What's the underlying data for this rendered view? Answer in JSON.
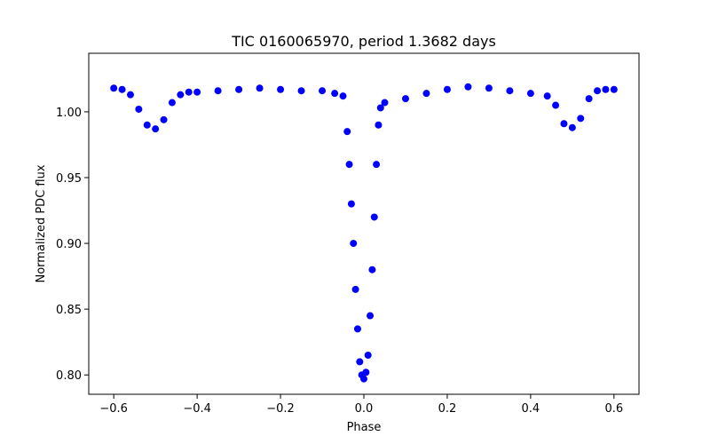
{
  "chart_data": {
    "type": "scatter",
    "title": "TIC 0160065970, period 1.3682 days",
    "xlabel": "Phase",
    "ylabel": "Normalized PDC flux",
    "xlim": [
      -0.66,
      0.66
    ],
    "ylim": [
      0.7853,
      1.0445
    ],
    "xticks": [
      -0.6,
      -0.4,
      -0.2,
      0.0,
      0.2,
      0.4,
      0.6
    ],
    "xtick_labels": [
      "−0.6",
      "−0.4",
      "−0.2",
      "0.0",
      "0.2",
      "0.4",
      "0.6"
    ],
    "yticks": [
      0.8,
      0.85,
      0.9,
      0.95,
      1.0
    ],
    "ytick_labels": [
      "0.80",
      "0.85",
      "0.90",
      "0.95",
      "1.00"
    ],
    "grid": false,
    "marker_color": "#0000ff",
    "series": [
      {
        "points": [
          [
            -0.6,
            1.018
          ],
          [
            -0.58,
            1.017
          ],
          [
            -0.56,
            1.013
          ],
          [
            -0.54,
            1.002
          ],
          [
            -0.52,
            0.99
          ],
          [
            -0.5,
            0.987
          ],
          [
            -0.48,
            0.994
          ],
          [
            -0.46,
            1.007
          ],
          [
            -0.44,
            1.013
          ],
          [
            -0.42,
            1.015
          ],
          [
            -0.4,
            1.015
          ],
          [
            -0.35,
            1.016
          ],
          [
            -0.3,
            1.017
          ],
          [
            -0.25,
            1.018
          ],
          [
            -0.2,
            1.017
          ],
          [
            -0.15,
            1.016
          ],
          [
            -0.1,
            1.016
          ],
          [
            -0.07,
            1.014
          ],
          [
            -0.05,
            1.012
          ],
          [
            -0.04,
            0.985
          ],
          [
            -0.035,
            0.96
          ],
          [
            -0.03,
            0.93
          ],
          [
            -0.025,
            0.9
          ],
          [
            -0.02,
            0.865
          ],
          [
            -0.015,
            0.835
          ],
          [
            -0.01,
            0.81
          ],
          [
            -0.005,
            0.8
          ],
          [
            0.0,
            0.797
          ],
          [
            0.005,
            0.802
          ],
          [
            0.01,
            0.815
          ],
          [
            0.015,
            0.845
          ],
          [
            0.02,
            0.88
          ],
          [
            0.025,
            0.92
          ],
          [
            0.03,
            0.96
          ],
          [
            0.035,
            0.99
          ],
          [
            0.04,
            1.003
          ],
          [
            0.05,
            1.007
          ],
          [
            0.1,
            1.01
          ],
          [
            0.15,
            1.014
          ],
          [
            0.2,
            1.017
          ],
          [
            0.25,
            1.019
          ],
          [
            0.3,
            1.018
          ],
          [
            0.35,
            1.016
          ],
          [
            0.4,
            1.014
          ],
          [
            0.44,
            1.012
          ],
          [
            0.46,
            1.005
          ],
          [
            0.48,
            0.991
          ],
          [
            0.5,
            0.988
          ],
          [
            0.52,
            0.995
          ],
          [
            0.54,
            1.01
          ],
          [
            0.56,
            1.016
          ],
          [
            0.58,
            1.017
          ],
          [
            0.6,
            1.017
          ]
        ]
      }
    ]
  }
}
